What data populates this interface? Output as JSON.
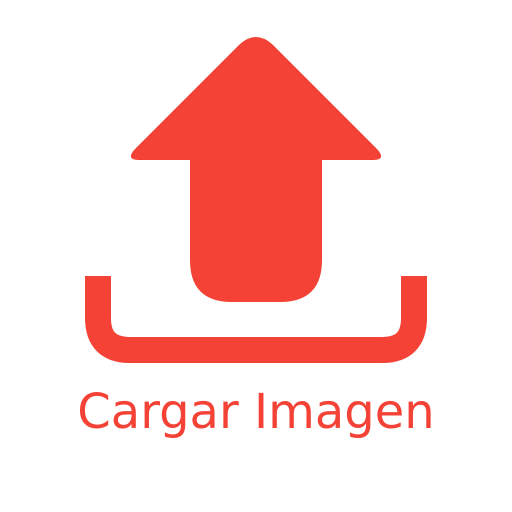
{
  "upload": {
    "label": "Cargar Imagen",
    "icon": "upload-arrow-icon",
    "color": "#f44336"
  }
}
